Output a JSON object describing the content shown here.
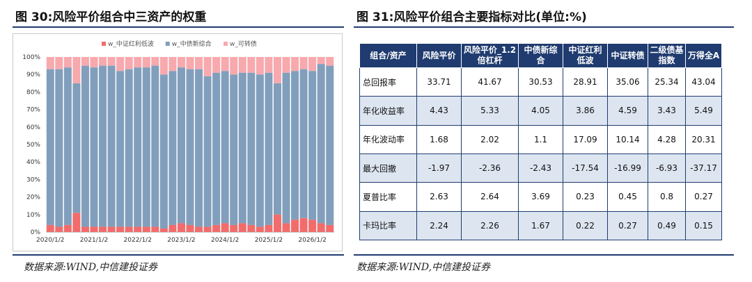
{
  "left_panel": {
    "title": "图 30:风险平价组合中三资产的权重",
    "source": "数据来源:WIND,中信建投证券"
  },
  "right_panel": {
    "title": "图 31:风险平价组合主要指标对比(单位:%)",
    "source": "数据来源:WIND,中信建投证券"
  },
  "colors": {
    "red": "#f26c6c",
    "blue": "#819fbc",
    "pink": "#f7a9ae",
    "header": "#1f3b6f",
    "alt_row": "#dde5f0"
  },
  "chart_data": {
    "type": "bar",
    "stacked": true,
    "series": [
      {
        "name": "w_中证红利低波",
        "color": "#f26c6c",
        "values": [
          4,
          3,
          4,
          11,
          3,
          3,
          3,
          3,
          3,
          3,
          3,
          3,
          3,
          2,
          4,
          5,
          4,
          3,
          3,
          4,
          5,
          4,
          5,
          4,
          3,
          4,
          10,
          5,
          7,
          8,
          7,
          5,
          4
        ]
      },
      {
        "name": "w_中债新综合",
        "color": "#819fbc",
        "values": [
          89,
          90,
          90,
          74,
          92,
          91,
          92,
          92,
          89,
          90,
          91,
          91,
          92,
          88,
          88,
          89,
          89,
          90,
          86,
          87,
          87,
          86,
          86,
          87,
          87,
          87,
          75,
          86,
          85,
          85,
          85,
          91,
          91
        ]
      },
      {
        "name": "w_可转债",
        "color": "#f7a9ae",
        "values": [
          7,
          7,
          6,
          15,
          5,
          6,
          5,
          5,
          8,
          7,
          6,
          6,
          5,
          10,
          8,
          6,
          7,
          7,
          11,
          9,
          8,
          10,
          9,
          9,
          10,
          9,
          15,
          9,
          8,
          7,
          8,
          4,
          5
        ]
      }
    ],
    "x_tick_labels": [
      "2020/1/2",
      "2021/1/2",
      "2022/1/2",
      "2023/1/2",
      "2024/1/2",
      "2025/1/2",
      "2026/1/2"
    ],
    "x_tick_positions": [
      0,
      5,
      10,
      15,
      20,
      25,
      30
    ],
    "y_ticks": [
      "0%",
      "10%",
      "20%",
      "30%",
      "40%",
      "50%",
      "60%",
      "70%",
      "80%",
      "90%",
      "100%"
    ],
    "ylim": [
      0,
      100
    ],
    "legend_position": "top-center",
    "grid": false
  },
  "table": {
    "headers": [
      "组合/资产",
      "风险平价",
      "风险平价_1.2倍杠杆",
      "中债新综合",
      "中证红利低波",
      "中证转债",
      "二级债基指数",
      "万得全A"
    ],
    "rows": [
      {
        "name": "总回报率",
        "values": [
          "33.71",
          "41.67",
          "30.53",
          "28.91",
          "35.06",
          "25.34",
          "43.04"
        ]
      },
      {
        "name": "年化收益率",
        "values": [
          "4.43",
          "5.33",
          "4.05",
          "3.86",
          "4.59",
          "3.43",
          "5.49"
        ]
      },
      {
        "name": "年化波动率",
        "values": [
          "1.68",
          "2.02",
          "1.1",
          "17.09",
          "10.14",
          "4.28",
          "20.31"
        ]
      },
      {
        "name": "最大回撤",
        "values": [
          "-1.97",
          "-2.36",
          "-2.43",
          "-17.54",
          "-16.99",
          "-6.93",
          "-37.17"
        ]
      },
      {
        "name": "夏普比率",
        "values": [
          "2.63",
          "2.64",
          "3.69",
          "0.23",
          "0.45",
          "0.8",
          "0.27"
        ]
      },
      {
        "name": "卡玛比率",
        "values": [
          "2.24",
          "2.26",
          "1.67",
          "0.22",
          "0.27",
          "0.49",
          "0.15"
        ]
      }
    ]
  }
}
